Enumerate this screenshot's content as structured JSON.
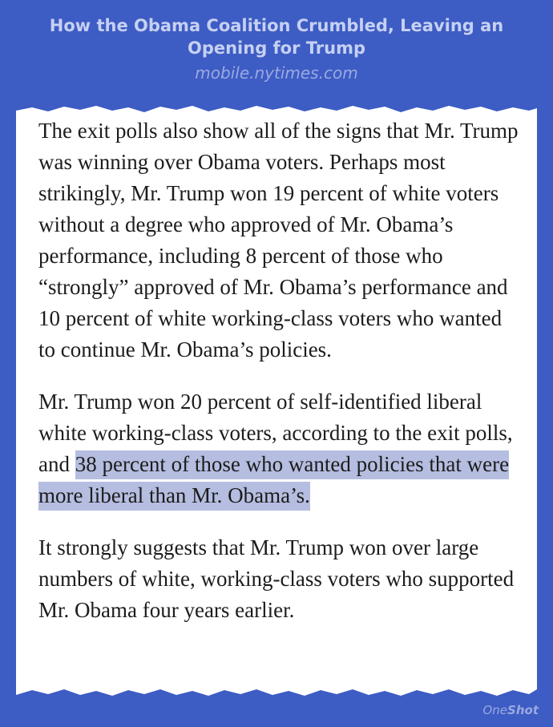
{
  "header": {
    "title": "How the Obama Coalition Crumbled, Leaving an Opening for Trump",
    "source": "mobile.nytimes.com"
  },
  "article": {
    "p1": "The exit polls also show all of the signs that Mr. Trump was winning over Obama voters. Perhaps most strikingly, Mr. Trump won 19 percent of white voters without a degree who approved of Mr. Obama’s performance, including 8 percent of those who “strongly” approved of Mr. Obama’s performance and 10 percent of white working-class voters who wanted to continue Mr. Obama’s policies.",
    "p2_plain": "Mr. Trump won 20 percent of self-identified liberal white working-class voters, according to the exit polls, and ",
    "p2_highlight": "38 percent of those who wanted policies that were more liberal than Mr. Obama’s.",
    "p3": "It strongly suggests that Mr. Trump won over large numbers of white, working-class voters who supported Mr. Obama four years earlier."
  },
  "brand": {
    "part1": "One",
    "part2": "Shot"
  },
  "colors": {
    "background": "#3d5cc4",
    "card": "#ffffff",
    "highlight": "#b5bee0"
  }
}
